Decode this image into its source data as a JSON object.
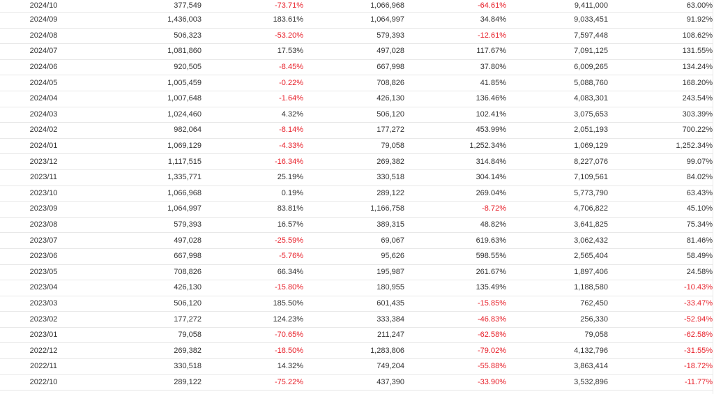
{
  "table": {
    "rows": [
      {
        "period": "2024/10",
        "v1": "377,549",
        "p1": "-73.71%",
        "v2": "1,066,968",
        "p2": "-64.61%",
        "v3": "9,411,000",
        "p3": "63.00%"
      },
      {
        "period": "2024/09",
        "v1": "1,436,003",
        "p1": "183.61%",
        "v2": "1,064,997",
        "p2": "34.84%",
        "v3": "9,033,451",
        "p3": "91.92%"
      },
      {
        "period": "2024/08",
        "v1": "506,323",
        "p1": "-53.20%",
        "v2": "579,393",
        "p2": "-12.61%",
        "v3": "7,597,448",
        "p3": "108.62%"
      },
      {
        "period": "2024/07",
        "v1": "1,081,860",
        "p1": "17.53%",
        "v2": "497,028",
        "p2": "117.67%",
        "v3": "7,091,125",
        "p3": "131.55%"
      },
      {
        "period": "2024/06",
        "v1": "920,505",
        "p1": "-8.45%",
        "v2": "667,998",
        "p2": "37.80%",
        "v3": "6,009,265",
        "p3": "134.24%"
      },
      {
        "period": "2024/05",
        "v1": "1,005,459",
        "p1": "-0.22%",
        "v2": "708,826",
        "p2": "41.85%",
        "v3": "5,088,760",
        "p3": "168.20%"
      },
      {
        "period": "2024/04",
        "v1": "1,007,648",
        "p1": "-1.64%",
        "v2": "426,130",
        "p2": "136.46%",
        "v3": "4,083,301",
        "p3": "243.54%"
      },
      {
        "period": "2024/03",
        "v1": "1,024,460",
        "p1": "4.32%",
        "v2": "506,120",
        "p2": "102.41%",
        "v3": "3,075,653",
        "p3": "303.39%"
      },
      {
        "period": "2024/02",
        "v1": "982,064",
        "p1": "-8.14%",
        "v2": "177,272",
        "p2": "453.99%",
        "v3": "2,051,193",
        "p3": "700.22%"
      },
      {
        "period": "2024/01",
        "v1": "1,069,129",
        "p1": "-4.33%",
        "v2": "79,058",
        "p2": "1,252.34%",
        "v3": "1,069,129",
        "p3": "1,252.34%"
      },
      {
        "period": "2023/12",
        "v1": "1,117,515",
        "p1": "-16.34%",
        "v2": "269,382",
        "p2": "314.84%",
        "v3": "8,227,076",
        "p3": "99.07%"
      },
      {
        "period": "2023/11",
        "v1": "1,335,771",
        "p1": "25.19%",
        "v2": "330,518",
        "p2": "304.14%",
        "v3": "7,109,561",
        "p3": "84.02%"
      },
      {
        "period": "2023/10",
        "v1": "1,066,968",
        "p1": "0.19%",
        "v2": "289,122",
        "p2": "269.04%",
        "v3": "5,773,790",
        "p3": "63.43%"
      },
      {
        "period": "2023/09",
        "v1": "1,064,997",
        "p1": "83.81%",
        "v2": "1,166,758",
        "p2": "-8.72%",
        "v3": "4,706,822",
        "p3": "45.10%"
      },
      {
        "period": "2023/08",
        "v1": "579,393",
        "p1": "16.57%",
        "v2": "389,315",
        "p2": "48.82%",
        "v3": "3,641,825",
        "p3": "75.34%"
      },
      {
        "period": "2023/07",
        "v1": "497,028",
        "p1": "-25.59%",
        "v2": "69,067",
        "p2": "619.63%",
        "v3": "3,062,432",
        "p3": "81.46%"
      },
      {
        "period": "2023/06",
        "v1": "667,998",
        "p1": "-5.76%",
        "v2": "95,626",
        "p2": "598.55%",
        "v3": "2,565,404",
        "p3": "58.49%"
      },
      {
        "period": "2023/05",
        "v1": "708,826",
        "p1": "66.34%",
        "v2": "195,987",
        "p2": "261.67%",
        "v3": "1,897,406",
        "p3": "24.58%"
      },
      {
        "period": "2023/04",
        "v1": "426,130",
        "p1": "-15.80%",
        "v2": "180,955",
        "p2": "135.49%",
        "v3": "1,188,580",
        "p3": "-10.43%"
      },
      {
        "period": "2023/03",
        "v1": "506,120",
        "p1": "185.50%",
        "v2": "601,435",
        "p2": "-15.85%",
        "v3": "762,450",
        "p3": "-33.47%"
      },
      {
        "period": "2023/02",
        "v1": "177,272",
        "p1": "124.23%",
        "v2": "333,384",
        "p2": "-46.83%",
        "v3": "256,330",
        "p3": "-52.94%"
      },
      {
        "period": "2023/01",
        "v1": "79,058",
        "p1": "-70.65%",
        "v2": "211,247",
        "p2": "-62.58%",
        "v3": "79,058",
        "p3": "-62.58%"
      },
      {
        "period": "2022/12",
        "v1": "269,382",
        "p1": "-18.50%",
        "v2": "1,283,806",
        "p2": "-79.02%",
        "v3": "4,132,796",
        "p3": "-31.55%"
      },
      {
        "period": "2022/11",
        "v1": "330,518",
        "p1": "14.32%",
        "v2": "749,204",
        "p2": "-55.88%",
        "v3": "3,863,414",
        "p3": "-18.72%"
      },
      {
        "period": "2022/10",
        "v1": "289,122",
        "p1": "-75.22%",
        "v2": "437,390",
        "p2": "-33.90%",
        "v3": "3,532,896",
        "p3": "-11.77%"
      }
    ]
  },
  "colors": {
    "negative": "#e8202a",
    "positive": "#333333",
    "border": "#e8e8e8"
  }
}
